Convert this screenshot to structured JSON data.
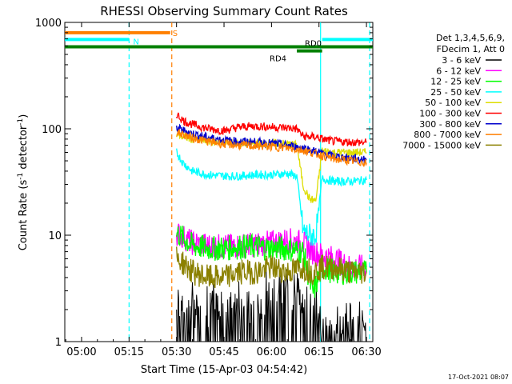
{
  "chart_data": {
    "type": "line",
    "title": "RHESSI Observing Summary Count Rates",
    "xlabel": "Start Time (15-Apr-03 04:54:42)",
    "ylabel": "Count Rate (s",
    "ylabel_sup1": "-1",
    "ylabel_mid": " detector",
    "ylabel_sup2": "-1",
    "ylabel_end": ")",
    "x_range_minutes": [
      54.7,
      152
    ],
    "x_ticks": [
      {
        "label": "05:00",
        "minute": 60
      },
      {
        "label": "05:15",
        "minute": 75
      },
      {
        "label": "05:30",
        "minute": 90
      },
      {
        "label": "05:45",
        "minute": 105
      },
      {
        "label": "06:00",
        "minute": 120
      },
      {
        "label": "06:15",
        "minute": 135
      },
      {
        "label": "06:30",
        "minute": 150
      }
    ],
    "y_scale": "log",
    "y_range": [
      1,
      1000
    ],
    "y_ticks": [
      {
        "label": "1",
        "value": 1
      },
      {
        "label": "10",
        "value": 10
      },
      {
        "label": "100",
        "value": 100
      },
      {
        "label": "1000",
        "value": 1000
      }
    ],
    "legend_header": [
      "Det 1,3,4,5,6,9,",
      "FDecim 1, Att 0"
    ],
    "legend_position": "right",
    "series": [
      {
        "name": "3 - 6 keV",
        "color": "#000000",
        "x": [
          90,
          95,
          100,
          105,
          110,
          115,
          120,
          125,
          130,
          133,
          136,
          140,
          145,
          150
        ],
        "y": [
          1.8,
          1.5,
          1.6,
          1.7,
          1.5,
          1.6,
          2.0,
          2.2,
          1.9,
          1.5,
          1.0,
          1.0,
          1.0,
          1.0
        ]
      },
      {
        "name": "6 - 12 keV",
        "color": "#ff00ff",
        "x": [
          90,
          95,
          100,
          105,
          110,
          115,
          120,
          125,
          130,
          133,
          136,
          140,
          145,
          150
        ],
        "y": [
          10.5,
          8.5,
          8.0,
          7.8,
          8.0,
          8.2,
          8.5,
          9.0,
          8.5,
          7.0,
          6.5,
          6.0,
          5.0,
          5.0
        ]
      },
      {
        "name": "12 - 25 keV",
        "color": "#00ff00",
        "x": [
          90,
          95,
          100,
          105,
          110,
          115,
          120,
          125,
          130,
          133,
          136,
          140,
          145,
          150
        ],
        "y": [
          10.5,
          8.0,
          7.5,
          7.5,
          7.8,
          7.8,
          7.5,
          7.5,
          7.0,
          2.8,
          5.0,
          4.5,
          4.5,
          4.5
        ]
      },
      {
        "name": "25 - 50 keV",
        "color": "#00ffff",
        "x": [
          90,
          92,
          95,
          100,
          105,
          110,
          115,
          120,
          125,
          128,
          130,
          132,
          134,
          136,
          140,
          145,
          150
        ],
        "y": [
          60,
          48,
          40,
          37,
          36,
          36,
          37,
          37,
          38,
          36,
          11,
          10,
          10,
          34,
          32,
          32,
          33
        ]
      },
      {
        "name": "50 - 100 keV",
        "color": "#dddd00",
        "x": [
          90,
          95,
          100,
          105,
          110,
          115,
          120,
          125,
          128,
          130,
          132,
          134,
          136,
          140,
          145,
          150
        ],
        "y": [
          88,
          80,
          76,
          74,
          73,
          72,
          73,
          72,
          70,
          29,
          22,
          21,
          62,
          60,
          60,
          60
        ]
      },
      {
        "name": "100 - 300 keV",
        "color": "#ff0000",
        "x": [
          90,
          92,
          95,
          100,
          105,
          110,
          115,
          120,
          125,
          128,
          130,
          132,
          134,
          136,
          140,
          145,
          150
        ],
        "y": [
          138,
          120,
          110,
          100,
          96,
          104,
          106,
          104,
          102,
          100,
          85,
          84,
          84,
          80,
          76,
          75,
          74
        ]
      },
      {
        "name": "300 - 800 keV",
        "color": "#0000cc",
        "x": [
          90,
          95,
          100,
          105,
          110,
          115,
          120,
          125,
          130,
          135,
          140,
          145,
          150
        ],
        "y": [
          102,
          90,
          83,
          78,
          76,
          75,
          73,
          70,
          66,
          60,
          55,
          53,
          51
        ]
      },
      {
        "name": "800 - 7000 keV",
        "color": "#ff7f00",
        "x": [
          90,
          95,
          100,
          105,
          110,
          115,
          120,
          125,
          130,
          135,
          140,
          145,
          150
        ],
        "y": [
          93,
          82,
          76,
          72,
          70,
          69,
          68,
          66,
          63,
          57,
          52,
          50,
          48
        ]
      },
      {
        "name": "7000 - 15000 keV",
        "color": "#8b8000",
        "x": [
          90,
          92,
          95,
          100,
          105,
          110,
          115,
          120,
          125,
          130,
          133,
          136,
          140,
          145,
          150
        ],
        "y": [
          6.0,
          5.5,
          4.5,
          4.0,
          4.0,
          4.5,
          4.5,
          5.0,
          4.5,
          5.0,
          4.5,
          5.0,
          5.0,
          4.5,
          4.5
        ]
      }
    ],
    "annotations": [
      {
        "label": "S",
        "color": "#ff7f00",
        "x_start": 54.7,
        "x_end": 88,
        "y": 800
      },
      {
        "label": "N",
        "color": "#00ffff",
        "x_start": 54.7,
        "x_end": 75,
        "y": 690
      },
      {
        "label": "",
        "color": "#00ffff",
        "x_start": 136,
        "x_end": 152,
        "y": 690
      },
      {
        "label": "RD0",
        "color": "#008000",
        "x_start": 54.7,
        "x_end": 152,
        "y": 590
      },
      {
        "label": "RD4",
        "color": "#008000",
        "x_start": 128,
        "x_end": 136,
        "y": 540
      }
    ],
    "vlines": [
      {
        "minute": 75,
        "color": "#00ffff",
        "style": "dashed"
      },
      {
        "minute": 88.5,
        "color": "#ff7f00",
        "style": "dashed"
      },
      {
        "minute": 135.5,
        "color": "#00ffff",
        "style": "solid"
      },
      {
        "minute": 151,
        "color": "#00ffff",
        "style": "dashed"
      }
    ],
    "footer_date": "17-Oct-2021 08:07"
  }
}
